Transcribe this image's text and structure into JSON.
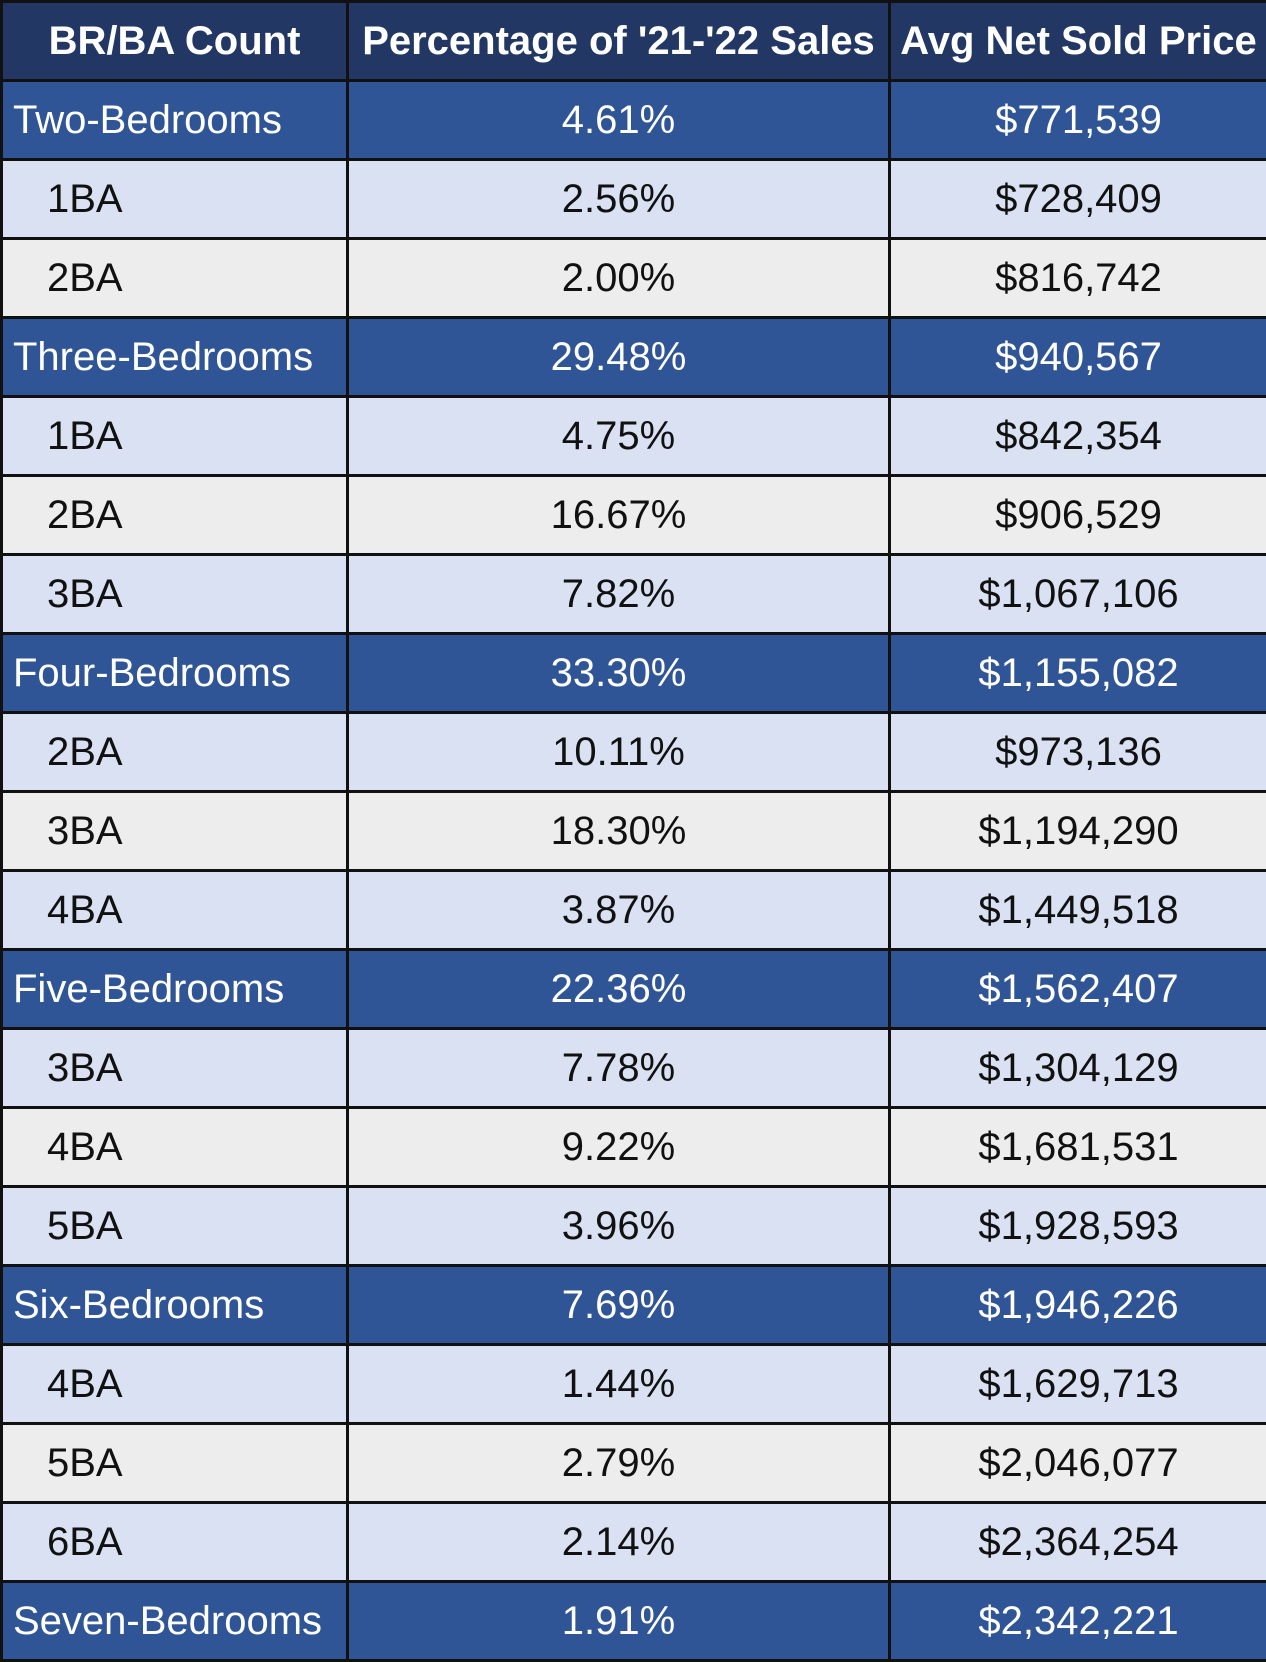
{
  "headers": {
    "col1": "BR/BA Count",
    "col2": "Percentage of '21-'22 Sales",
    "col3": "Avg Net Sold Price"
  },
  "colors": {
    "header_bg": "#223763",
    "group_bg": "#2f5597",
    "sub_odd_bg": "#d9e1f2",
    "sub_even_bg": "#ededed",
    "border": "#111111"
  },
  "rows": [
    {
      "type": "group",
      "label": "Two-Bedrooms",
      "pct": "4.61%",
      "price": "$771,539"
    },
    {
      "type": "sub",
      "label": "1BA",
      "pct": "2.56%",
      "price": "$728,409"
    },
    {
      "type": "sub",
      "label": "2BA",
      "pct": "2.00%",
      "price": "$816,742"
    },
    {
      "type": "group",
      "label": "Three-Bedrooms",
      "pct": "29.48%",
      "price": "$940,567"
    },
    {
      "type": "sub",
      "label": "1BA",
      "pct": "4.75%",
      "price": "$842,354"
    },
    {
      "type": "sub",
      "label": "2BA",
      "pct": "16.67%",
      "price": "$906,529"
    },
    {
      "type": "sub",
      "label": "3BA",
      "pct": "7.82%",
      "price": "$1,067,106"
    },
    {
      "type": "group",
      "label": "Four-Bedrooms",
      "pct": "33.30%",
      "price": "$1,155,082"
    },
    {
      "type": "sub",
      "label": "2BA",
      "pct": "10.11%",
      "price": "$973,136"
    },
    {
      "type": "sub",
      "label": "3BA",
      "pct": "18.30%",
      "price": "$1,194,290"
    },
    {
      "type": "sub",
      "label": "4BA",
      "pct": "3.87%",
      "price": "$1,449,518"
    },
    {
      "type": "group",
      "label": "Five-Bedrooms",
      "pct": "22.36%",
      "price": "$1,562,407"
    },
    {
      "type": "sub",
      "label": "3BA",
      "pct": "7.78%",
      "price": "$1,304,129"
    },
    {
      "type": "sub",
      "label": "4BA",
      "pct": "9.22%",
      "price": "$1,681,531"
    },
    {
      "type": "sub",
      "label": "5BA",
      "pct": "3.96%",
      "price": "$1,928,593"
    },
    {
      "type": "group",
      "label": "Six-Bedrooms",
      "pct": "7.69%",
      "price": "$1,946,226"
    },
    {
      "type": "sub",
      "label": "4BA",
      "pct": "1.44%",
      "price": "$1,629,713"
    },
    {
      "type": "sub",
      "label": "5BA",
      "pct": "2.79%",
      "price": "$2,046,077"
    },
    {
      "type": "sub",
      "label": "6BA",
      "pct": "2.14%",
      "price": "$2,364,254"
    },
    {
      "type": "group",
      "label": "Seven-Bedrooms",
      "pct": "1.91%",
      "price": "$2,342,221"
    }
  ]
}
